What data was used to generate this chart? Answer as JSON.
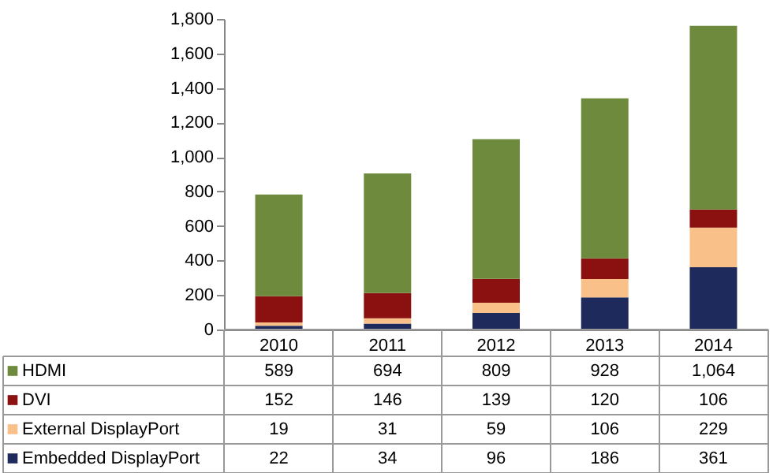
{
  "chart_data": {
    "type": "bar",
    "stacked": true,
    "categories": [
      "2010",
      "2011",
      "2012",
      "2013",
      "2014"
    ],
    "series": [
      {
        "name": "Embedded DisplayPort",
        "color": "#1f2a5c",
        "values": [
          22,
          34,
          96,
          186,
          361
        ],
        "value_labels": [
          "22",
          "34",
          "96",
          "186",
          "361"
        ]
      },
      {
        "name": "External DisplayPort",
        "color": "#f9c08a",
        "values": [
          19,
          31,
          59,
          106,
          229
        ],
        "value_labels": [
          "19",
          "31",
          "59",
          "106",
          "229"
        ]
      },
      {
        "name": "DVI",
        "color": "#8b1010",
        "values": [
          152,
          146,
          139,
          120,
          106
        ],
        "value_labels": [
          "152",
          "146",
          "139",
          "120",
          "106"
        ]
      },
      {
        "name": "HDMI",
        "color": "#6e8b3d",
        "values": [
          589,
          694,
          809,
          928,
          1064
        ],
        "value_labels": [
          "589",
          "694",
          "809",
          "928",
          "1,064"
        ]
      }
    ],
    "ylim": [
      0,
      1800
    ],
    "yticks": [
      0,
      200,
      400,
      600,
      800,
      {
        "value": 1000,
        "label": "1,000"
      },
      {
        "value": 1200,
        "label": "1,200"
      },
      {
        "value": 1400,
        "label": "1,400"
      },
      {
        "value": 1600,
        "label": "1,600"
      },
      {
        "value": 1800,
        "label": "1,800"
      }
    ],
    "grid": false,
    "legend": "bottom"
  }
}
